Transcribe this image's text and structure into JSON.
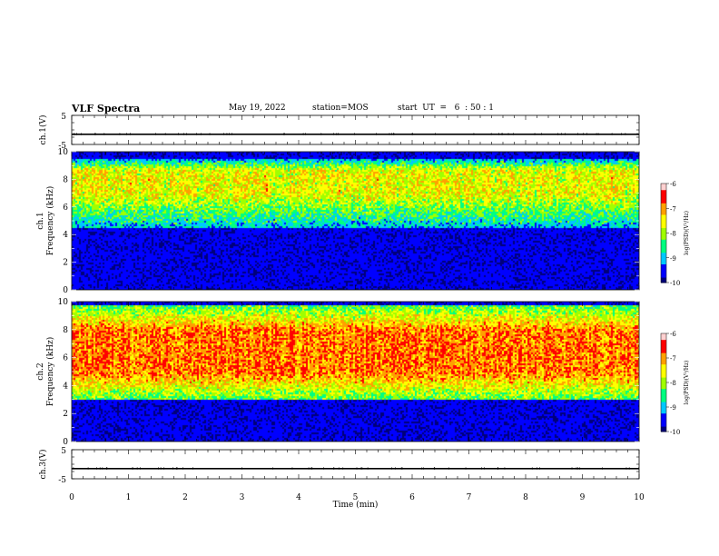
{
  "header": {
    "title": "VLF Spectra",
    "date": "May 19, 2022",
    "station": "station=MOS",
    "start": "start  UT  =   6  : 50 : 1"
  },
  "colors": {
    "colormap": [
      "#00007a",
      "#0000ff",
      "#00c8ff",
      "#00ff80",
      "#a0ff00",
      "#ffff00",
      "#ffa000",
      "#ff0000",
      "#ffd0d0"
    ],
    "background": "#000010",
    "trace": "#000000"
  },
  "chart_data": [
    {
      "type": "line",
      "ylabel": "ch.1(V)",
      "ylim": [
        -5,
        5
      ],
      "yticks": [
        "5",
        "-5"
      ],
      "xlim": [
        0,
        10
      ],
      "series": [
        {
          "x": [
            0,
            10
          ],
          "values": [
            -1.5,
            -1.5
          ]
        }
      ]
    },
    {
      "type": "heatmap",
      "ylabel": "ch.1\nFrequency (kHz)",
      "ylim": [
        0,
        10
      ],
      "yticks": [
        "0",
        "2",
        "4",
        "6",
        "8",
        "10"
      ],
      "xlim": [
        0,
        10
      ],
      "band_khz": [
        4.5,
        9.5
      ],
      "band_peak_khz": [
        7,
        8.7
      ],
      "colorbar": {
        "label": "log(PSD)(V²/Hz)",
        "ticks": [
          "-6",
          "-7",
          "-8",
          "-9",
          "-10"
        ],
        "range": [
          -10,
          -6
        ]
      },
      "horizontal_lines_khz": [
        0.5,
        0.7,
        1.5,
        2.0,
        2.3,
        3.1,
        3.3
      ]
    },
    {
      "type": "heatmap",
      "ylabel": "ch.2\nFrequency (kHz)",
      "ylim": [
        0,
        10
      ],
      "yticks": [
        "0",
        "2",
        "4",
        "6",
        "8",
        "10"
      ],
      "xlim": [
        0,
        10
      ],
      "band_khz": [
        3.0,
        9.8
      ],
      "band_peak_khz": [
        5.0,
        8.0
      ],
      "colorbar": {
        "label": "log(PSD)(V²/Hz)",
        "ticks": [
          "-6",
          "-7",
          "-8",
          "-9",
          "-10"
        ],
        "range": [
          -10,
          -6
        ]
      },
      "horizontal_lines_khz": [
        0.5,
        0.9,
        1.3,
        1.7,
        2.1,
        2.5
      ]
    },
    {
      "type": "line",
      "ylabel": "ch.3(V)",
      "ylim": [
        -5,
        5
      ],
      "yticks": [
        "5",
        "-5"
      ],
      "xlim": [
        0,
        10
      ],
      "series": [
        {
          "x": [
            0,
            10
          ],
          "values": [
            -1.5,
            -1.5
          ]
        }
      ],
      "xlabel": "Time  (min)",
      "xticks": [
        "0",
        "1",
        "2",
        "3",
        "4",
        "5",
        "6",
        "7",
        "8",
        "9",
        "10"
      ]
    }
  ]
}
